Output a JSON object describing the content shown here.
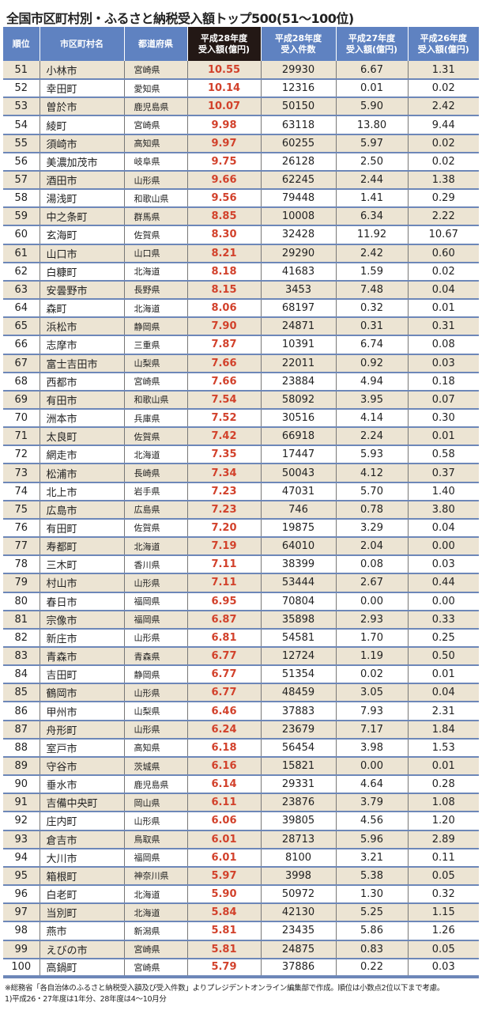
{
  "title": "全国市区町村別・ふるさと納税受入額トップ500(51〜100位)",
  "headers": [
    "順位",
    "市区町村名",
    "都道府県",
    "平成28年度\n受入額(億円)",
    "平成28年度\n受入件数",
    "平成27年度\n受入額(億円)",
    "平成26年度\n受入額(億円)"
  ],
  "colors": {
    "header": "#5f82c1",
    "highlight_header": "#231815",
    "main_value": "#d2412b",
    "odd_row": "#ece4d3"
  },
  "rows": [
    [
      "51",
      "小林市",
      "宮崎県",
      "10.55",
      "29930",
      "6.67",
      "1.31"
    ],
    [
      "52",
      "幸田町",
      "愛知県",
      "10.14",
      "12316",
      "0.01",
      "0.02"
    ],
    [
      "53",
      "曽於市",
      "鹿児島県",
      "10.07",
      "50150",
      "5.90",
      "2.42"
    ],
    [
      "54",
      "綾町",
      "宮崎県",
      "9.98",
      "63118",
      "13.80",
      "9.44"
    ],
    [
      "55",
      "須崎市",
      "高知県",
      "9.97",
      "60255",
      "5.97",
      "0.02"
    ],
    [
      "56",
      "美濃加茂市",
      "岐阜県",
      "9.75",
      "26128",
      "2.50",
      "0.02"
    ],
    [
      "57",
      "酒田市",
      "山形県",
      "9.66",
      "62245",
      "2.44",
      "1.38"
    ],
    [
      "58",
      "湯浅町",
      "和歌山県",
      "9.56",
      "79448",
      "1.41",
      "0.29"
    ],
    [
      "59",
      "中之条町",
      "群馬県",
      "8.85",
      "10008",
      "6.34",
      "2.22"
    ],
    [
      "60",
      "玄海町",
      "佐賀県",
      "8.30",
      "32428",
      "11.92",
      "10.67"
    ],
    [
      "61",
      "山口市",
      "山口県",
      "8.21",
      "29290",
      "2.42",
      "0.60"
    ],
    [
      "62",
      "白糠町",
      "北海道",
      "8.18",
      "41683",
      "1.59",
      "0.02"
    ],
    [
      "63",
      "安曇野市",
      "長野県",
      "8.15",
      "3453",
      "7.48",
      "0.04"
    ],
    [
      "64",
      "森町",
      "北海道",
      "8.06",
      "68197",
      "0.32",
      "0.01"
    ],
    [
      "65",
      "浜松市",
      "静岡県",
      "7.90",
      "24871",
      "0.31",
      "0.31"
    ],
    [
      "66",
      "志摩市",
      "三重県",
      "7.87",
      "10391",
      "6.74",
      "0.08"
    ],
    [
      "67",
      "富士吉田市",
      "山梨県",
      "7.66",
      "22011",
      "0.92",
      "0.03"
    ],
    [
      "68",
      "西都市",
      "宮崎県",
      "7.66",
      "23884",
      "4.94",
      "0.18"
    ],
    [
      "69",
      "有田市",
      "和歌山県",
      "7.54",
      "58092",
      "3.95",
      "0.07"
    ],
    [
      "70",
      "洲本市",
      "兵庫県",
      "7.52",
      "30516",
      "4.14",
      "0.30"
    ],
    [
      "71",
      "太良町",
      "佐賀県",
      "7.42",
      "66918",
      "2.24",
      "0.01"
    ],
    [
      "72",
      "網走市",
      "北海道",
      "7.35",
      "17447",
      "5.93",
      "0.58"
    ],
    [
      "73",
      "松浦市",
      "長崎県",
      "7.34",
      "50043",
      "4.12",
      "0.37"
    ],
    [
      "74",
      "北上市",
      "岩手県",
      "7.23",
      "47031",
      "5.70",
      "1.40"
    ],
    [
      "75",
      "広島市",
      "広島県",
      "7.23",
      "746",
      "0.78",
      "3.80"
    ],
    [
      "76",
      "有田町",
      "佐賀県",
      "7.20",
      "19875",
      "3.29",
      "0.04"
    ],
    [
      "77",
      "寿都町",
      "北海道",
      "7.19",
      "64010",
      "2.04",
      "0.00"
    ],
    [
      "78",
      "三木町",
      "香川県",
      "7.11",
      "38399",
      "0.08",
      "0.03"
    ],
    [
      "79",
      "村山市",
      "山形県",
      "7.11",
      "53444",
      "2.67",
      "0.44"
    ],
    [
      "80",
      "春日市",
      "福岡県",
      "6.95",
      "70804",
      "0.00",
      "0.00"
    ],
    [
      "81",
      "宗像市",
      "福岡県",
      "6.87",
      "35898",
      "2.93",
      "0.33"
    ],
    [
      "82",
      "新庄市",
      "山形県",
      "6.81",
      "54581",
      "1.70",
      "0.25"
    ],
    [
      "83",
      "青森市",
      "青森県",
      "6.77",
      "12724",
      "1.19",
      "0.50"
    ],
    [
      "84",
      "吉田町",
      "静岡県",
      "6.77",
      "51354",
      "0.02",
      "0.01"
    ],
    [
      "85",
      "鶴岡市",
      "山形県",
      "6.77",
      "48459",
      "3.05",
      "0.04"
    ],
    [
      "86",
      "甲州市",
      "山梨県",
      "6.46",
      "37883",
      "7.93",
      "2.31"
    ],
    [
      "87",
      "舟形町",
      "山形県",
      "6.24",
      "23679",
      "7.17",
      "1.84"
    ],
    [
      "88",
      "室戸市",
      "高知県",
      "6.18",
      "56454",
      "3.98",
      "1.53"
    ],
    [
      "89",
      "守谷市",
      "茨城県",
      "6.16",
      "15821",
      "0.00",
      "0.01"
    ],
    [
      "90",
      "垂水市",
      "鹿児島県",
      "6.14",
      "29331",
      "4.64",
      "0.28"
    ],
    [
      "91",
      "吉備中央町",
      "岡山県",
      "6.11",
      "23876",
      "3.79",
      "1.08"
    ],
    [
      "92",
      "庄内町",
      "山形県",
      "6.06",
      "39805",
      "4.56",
      "1.20"
    ],
    [
      "93",
      "倉吉市",
      "鳥取県",
      "6.01",
      "28713",
      "5.96",
      "2.89"
    ],
    [
      "94",
      "大川市",
      "福岡県",
      "6.01",
      "8100",
      "3.21",
      "0.11"
    ],
    [
      "95",
      "箱根町",
      "神奈川県",
      "5.97",
      "3998",
      "5.38",
      "0.05"
    ],
    [
      "96",
      "白老町",
      "北海道",
      "5.90",
      "50972",
      "1.30",
      "0.32"
    ],
    [
      "97",
      "当別町",
      "北海道",
      "5.84",
      "42130",
      "5.25",
      "1.15"
    ],
    [
      "98",
      "燕市",
      "新潟県",
      "5.81",
      "23435",
      "5.86",
      "1.26"
    ],
    [
      "99",
      "えびの市",
      "宮崎県",
      "5.81",
      "24875",
      "0.83",
      "0.05"
    ],
    [
      "100",
      "高鍋町",
      "宮崎県",
      "5.79",
      "37886",
      "0.22",
      "0.03"
    ]
  ],
  "notes": [
    "※総務省「各自治体のふるさと納税受入額及び受入件数」よりプレジデントオンライン編集部で作成。順位は小数点2位以下まで考慮。",
    "1)平成26・27年度は1年分、28年度は4〜10月分"
  ]
}
